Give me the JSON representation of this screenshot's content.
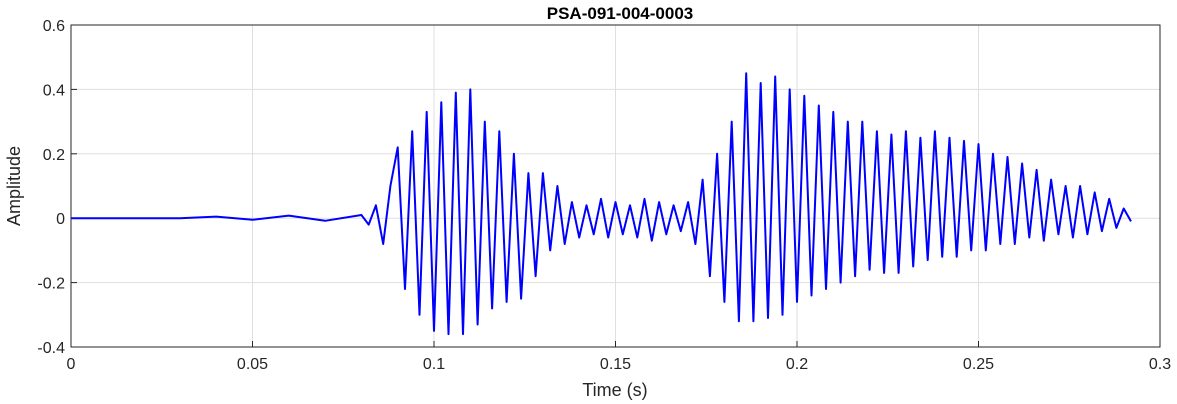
{
  "chart_data": {
    "type": "line",
    "title": "PSA-091-004-0003",
    "xlabel": "Time (s)",
    "ylabel": "Amplitude",
    "xlim": [
      0,
      0.3
    ],
    "ylim": [
      -0.4,
      0.6
    ],
    "xticks": [
      0,
      0.05,
      0.1,
      0.15,
      0.2,
      0.25,
      0.3
    ],
    "xtick_labels": [
      "0",
      "0.05",
      "0.1",
      "0.15",
      "0.2",
      "0.25",
      "0.3"
    ],
    "yticks": [
      -0.4,
      -0.2,
      0,
      0.2,
      0.4,
      0.6
    ],
    "ytick_labels": [
      "-0.4",
      "-0.2",
      "0",
      "0.2",
      "0.4",
      "0.6"
    ],
    "grid": true,
    "series": [
      {
        "color": "#0000ff",
        "x": [
          0,
          0.02,
          0.03,
          0.04,
          0.05,
          0.06,
          0.07,
          0.08,
          0.082,
          0.084,
          0.086,
          0.088,
          0.09,
          0.092,
          0.094,
          0.096,
          0.098,
          0.1,
          0.102,
          0.104,
          0.106,
          0.108,
          0.11,
          0.112,
          0.114,
          0.116,
          0.118,
          0.12,
          0.122,
          0.124,
          0.126,
          0.128,
          0.13,
          0.132,
          0.134,
          0.136,
          0.138,
          0.14,
          0.142,
          0.144,
          0.146,
          0.148,
          0.15,
          0.152,
          0.154,
          0.156,
          0.158,
          0.16,
          0.162,
          0.164,
          0.166,
          0.168,
          0.17,
          0.172,
          0.174,
          0.176,
          0.178,
          0.18,
          0.182,
          0.184,
          0.186,
          0.188,
          0.19,
          0.192,
          0.194,
          0.196,
          0.198,
          0.2,
          0.202,
          0.204,
          0.206,
          0.208,
          0.21,
          0.212,
          0.214,
          0.216,
          0.218,
          0.22,
          0.222,
          0.224,
          0.226,
          0.228,
          0.23,
          0.232,
          0.234,
          0.236,
          0.238,
          0.24,
          0.242,
          0.244,
          0.246,
          0.248,
          0.25,
          0.252,
          0.254,
          0.256,
          0.258,
          0.26,
          0.262,
          0.264,
          0.266,
          0.268,
          0.27,
          0.272,
          0.274,
          0.276,
          0.278,
          0.28,
          0.282,
          0.284,
          0.286,
          0.288,
          0.29,
          0.292
        ],
        "y": [
          0,
          0,
          0,
          0.005,
          -0.005,
          0.008,
          -0.008,
          0.01,
          -0.02,
          0.04,
          -0.08,
          0.1,
          0.22,
          -0.22,
          0.27,
          -0.3,
          0.33,
          -0.35,
          0.36,
          -0.36,
          0.39,
          -0.36,
          0.4,
          -0.33,
          0.3,
          -0.28,
          0.27,
          -0.26,
          0.2,
          -0.25,
          0.14,
          -0.18,
          0.14,
          -0.1,
          0.1,
          -0.08,
          0.05,
          -0.06,
          0.04,
          -0.05,
          0.06,
          -0.06,
          0.05,
          -0.05,
          0.04,
          -0.06,
          0.06,
          -0.07,
          0.05,
          -0.05,
          0.04,
          -0.04,
          0.05,
          -0.08,
          0.12,
          -0.18,
          0.2,
          -0.26,
          0.3,
          -0.32,
          0.45,
          -0.32,
          0.42,
          -0.31,
          0.44,
          -0.3,
          0.4,
          -0.26,
          0.38,
          -0.24,
          0.35,
          -0.22,
          0.33,
          -0.2,
          0.3,
          -0.18,
          0.3,
          -0.16,
          0.27,
          -0.17,
          0.26,
          -0.17,
          0.27,
          -0.15,
          0.25,
          -0.13,
          0.27,
          -0.12,
          0.25,
          -0.12,
          0.24,
          -0.1,
          0.23,
          -0.1,
          0.2,
          -0.08,
          0.19,
          -0.08,
          0.17,
          -0.06,
          0.15,
          -0.07,
          0.12,
          -0.05,
          0.1,
          -0.06,
          0.1,
          -0.05,
          0.08,
          -0.04,
          0.06,
          -0.03,
          0.03,
          -0.01
        ]
      }
    ]
  }
}
